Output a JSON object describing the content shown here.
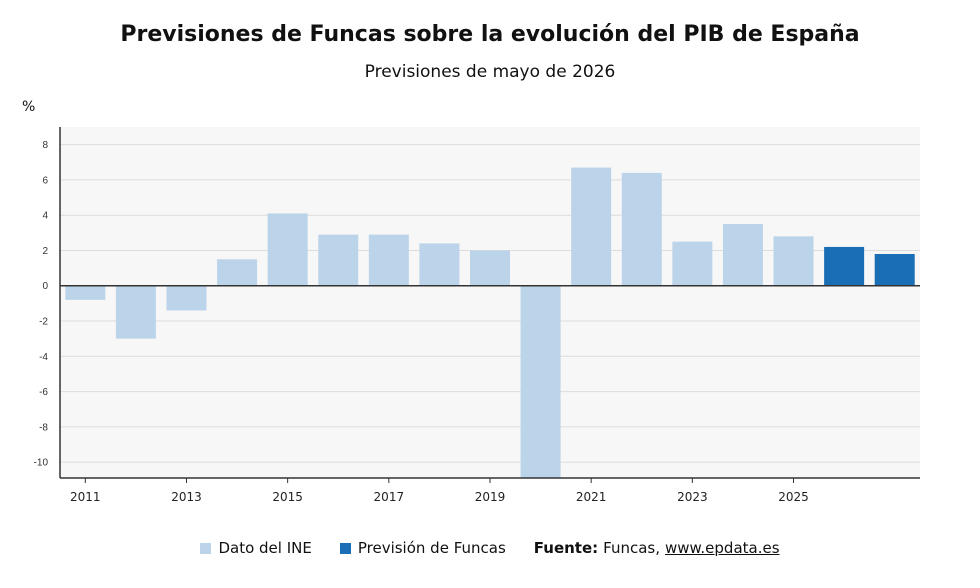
{
  "header": {
    "title": "Previsiones de Funcas sobre la evolución del PIB de España",
    "subtitle": "Previsiones de mayo de 2026",
    "unit": "%"
  },
  "legend": {
    "items": [
      {
        "label": "Dato del INE",
        "color": "#bcd4ea"
      },
      {
        "label": "Previsión de Funcas",
        "color": "#1a6eb5"
      }
    ],
    "source_label": "Fuente:",
    "source_text": "Funcas,",
    "source_link": "www.epdata.es"
  },
  "chart_data": {
    "type": "bar",
    "title": "Previsiones de Funcas sobre la evolución del PIB de España",
    "subtitle": "Previsiones de mayo de 2026",
    "ylabel": "%",
    "xlabel": "",
    "categories": [
      "2011",
      "2012",
      "2013",
      "2014",
      "2015",
      "2016",
      "2017",
      "2018",
      "2019",
      "2020",
      "2021",
      "2022",
      "2023",
      "2024",
      "2025",
      "2026",
      "2027"
    ],
    "series": [
      {
        "name": "Dato del INE",
        "color": "#bcd4ea",
        "values": [
          -0.8,
          -3.0,
          -1.4,
          1.5,
          4.1,
          2.9,
          2.9,
          2.4,
          2.0,
          -10.9,
          6.7,
          6.4,
          2.5,
          3.5,
          2.8,
          null,
          null
        ]
      },
      {
        "name": "Previsión de Funcas",
        "color": "#1a6eb5",
        "values": [
          null,
          null,
          null,
          null,
          null,
          null,
          null,
          null,
          null,
          null,
          null,
          null,
          null,
          null,
          null,
          2.2,
          1.8
        ]
      }
    ],
    "x_tick_labels": [
      "2011",
      "2013",
      "2015",
      "2017",
      "2019",
      "2021",
      "2023",
      "2025"
    ],
    "y_ticks": [
      8,
      6,
      4,
      2,
      0,
      -2,
      -4,
      -6,
      -8,
      -10
    ],
    "ylim": [
      -10.9,
      9.0
    ],
    "grid": true,
    "legend_position": "bottom"
  }
}
